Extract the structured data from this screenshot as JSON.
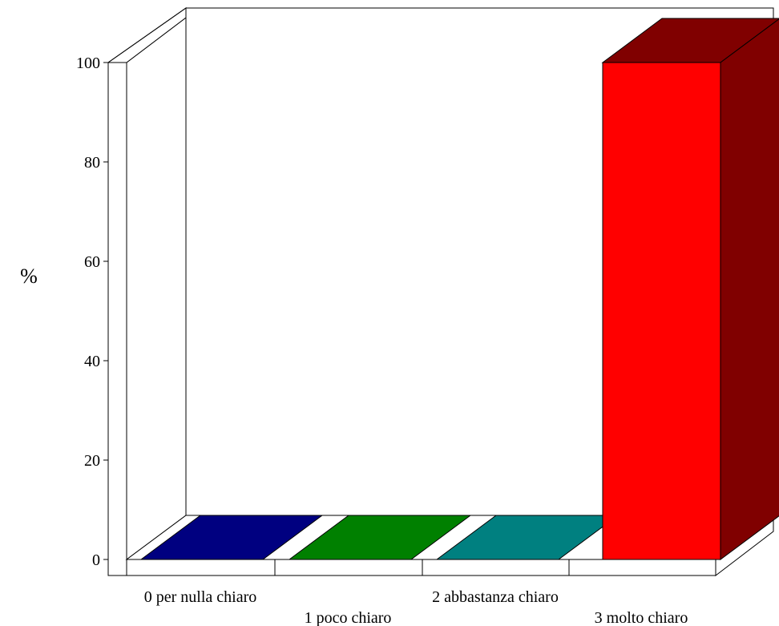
{
  "chart_data": {
    "type": "bar",
    "categories": [
      "0 per nulla chiaro",
      "1 poco chiaro",
      "2 abbastanza chiaro",
      "3 molto chiaro"
    ],
    "values": [
      0,
      0,
      0,
      100
    ],
    "ylabel": "%",
    "yticks": [
      "0",
      "20",
      "40",
      "60",
      "80",
      "100"
    ],
    "ylim": [
      0,
      100
    ],
    "grid": false,
    "legend": "none",
    "style": "3d",
    "bar_colors": [
      {
        "front": "#000080",
        "side": "#000040",
        "top": "#000080"
      },
      {
        "front": "#008000",
        "side": "#004000",
        "top": "#008000"
      },
      {
        "front": "#008080",
        "side": "#004040",
        "top": "#008080"
      },
      {
        "front": "#ff0000",
        "side": "#800000",
        "top": "#800000"
      }
    ]
  }
}
